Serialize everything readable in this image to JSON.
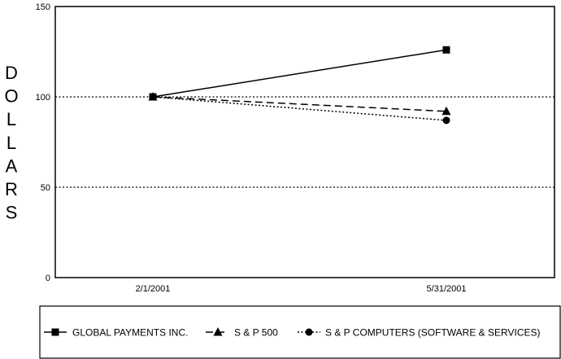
{
  "chart_data": {
    "type": "line",
    "title": "",
    "xlabel": "",
    "ylabel": "DOLLARS",
    "ylim": [
      0,
      150
    ],
    "yticks": [
      0,
      50,
      100,
      150
    ],
    "x": [
      "2/1/2001",
      "5/31/2001"
    ],
    "grid": "dotted horizontal at 50 and 100",
    "legend_position": "bottom",
    "series": [
      {
        "name": "GLOBAL PAYMENTS INC.",
        "values": [
          100,
          126
        ],
        "marker": "square",
        "line": "solid",
        "color": "#000000"
      },
      {
        "name": "S & P 500",
        "values": [
          100,
          92
        ],
        "marker": "triangle",
        "line": "dashed",
        "color": "#000000"
      },
      {
        "name": "S & P COMPUTERS (SOFTWARE & SERVICES)",
        "values": [
          100,
          87
        ],
        "marker": "circle",
        "line": "dotted",
        "color": "#000000"
      }
    ]
  }
}
